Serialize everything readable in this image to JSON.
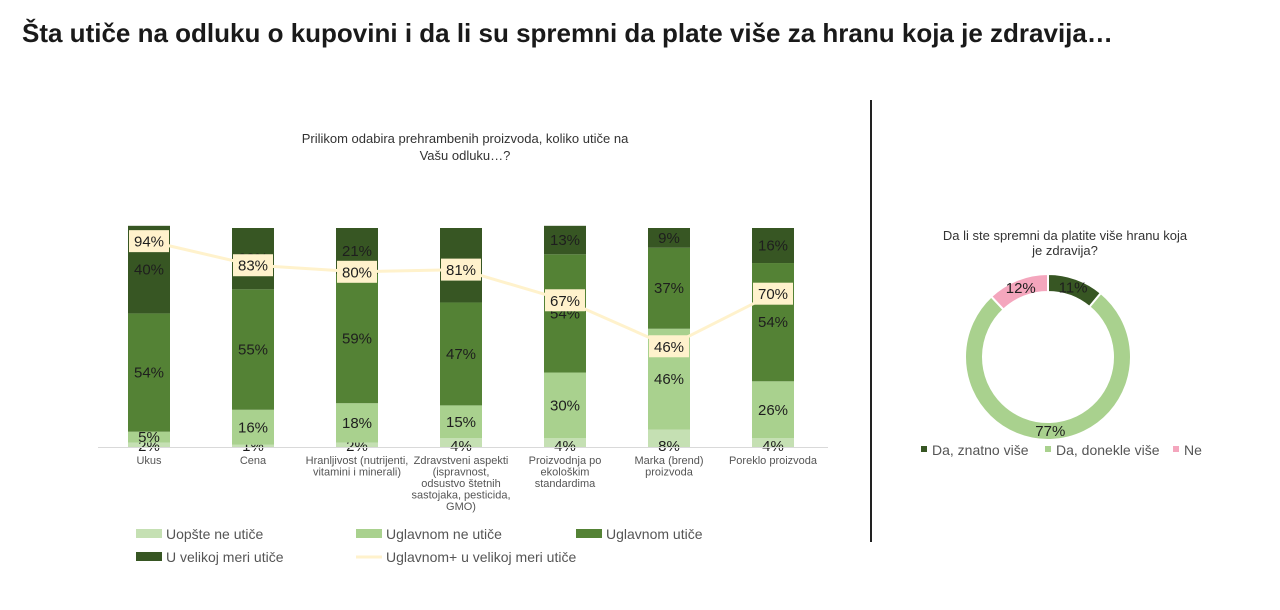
{
  "page": {
    "title": "Šta utiče na odluku o kupovini i da li su spremni da plate više za hranu koja je zdravija…"
  },
  "chart_data": [
    {
      "type": "bar",
      "stacked": true,
      "title_lines": [
        "Prilikom odabira prehrambenih proizvoda, koliko utiče na",
        "Vašu odluku…?"
      ],
      "categories": [
        [
          "Ukus"
        ],
        [
          "Cena"
        ],
        [
          "Hranljivost (nutrijenti,",
          "vitamini i minerali)"
        ],
        [
          "Zdravstveni aspekti",
          "(ispravnost,",
          "odsustvo štetnih",
          "sastojaka, pesticida,",
          "GMO)"
        ],
        [
          "Proizvodnja po",
          "ekološkim",
          "standardima"
        ],
        [
          "Marka (brend)",
          "proizvoda"
        ],
        [
          "Poreklo proizvoda"
        ]
      ],
      "series": [
        {
          "name": "Uopšte ne utiče",
          "color": "#c5e0b3",
          "values": [
            2,
            1,
            2,
            4,
            4,
            8,
            4
          ]
        },
        {
          "name": "Uglavnom ne utiče",
          "color": "#a9d18e",
          "values": [
            5,
            16,
            18,
            15,
            30,
            46,
            26
          ]
        },
        {
          "name": "Uglavnom utiče",
          "color": "#548235",
          "values": [
            54,
            55,
            59,
            47,
            54,
            37,
            54
          ]
        },
        {
          "name": "U velikoj meri utiče",
          "color": "#375623",
          "values": [
            40,
            28,
            21,
            34,
            13,
            9,
            16
          ]
        }
      ],
      "line_series": {
        "name": "Uglavnom+ u velikoj meri utiče",
        "color": "#fff2cc",
        "values": [
          94,
          83,
          80,
          81,
          67,
          46,
          70
        ]
      },
      "ylim": [
        0,
        100
      ],
      "legend_position": "bottom"
    },
    {
      "type": "pie",
      "donut": true,
      "title_lines": [
        "Da li ste spremni da platite više hranu koja",
        "je zdravija?"
      ],
      "slices": [
        {
          "name": "Da, znatno više",
          "value": 11,
          "color": "#375623"
        },
        {
          "name": "Da, donekle više",
          "value": 77,
          "color": "#a9d18e"
        },
        {
          "name": "Ne",
          "value": 12,
          "color": "#f4a6bd"
        }
      ],
      "legend_position": "bottom"
    }
  ]
}
